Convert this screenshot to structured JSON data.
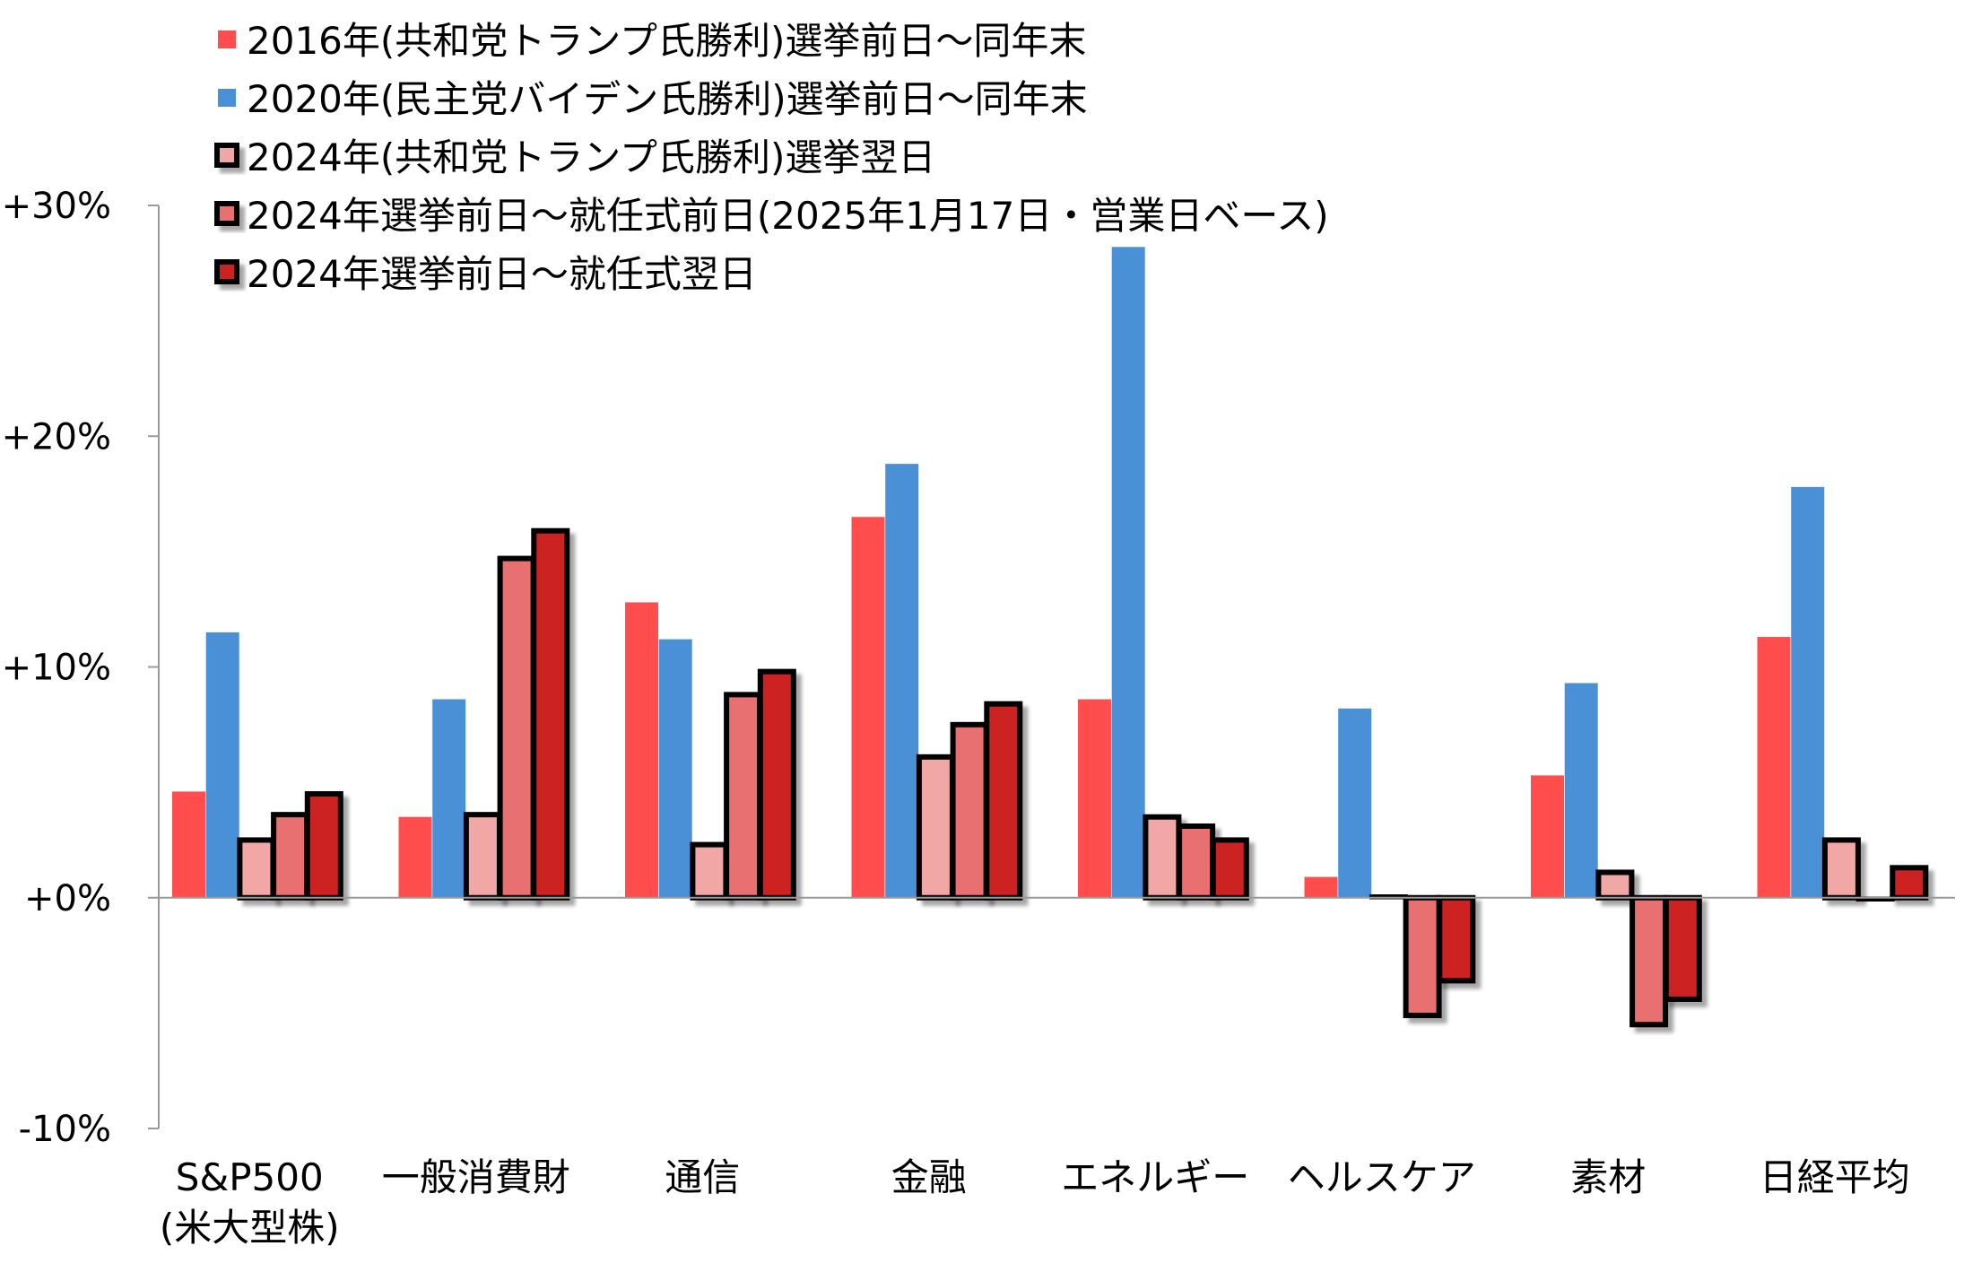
{
  "chart_data": {
    "type": "bar",
    "title": "",
    "xlabel": "",
    "ylabel": "",
    "ylim": [
      -10,
      30
    ],
    "yticks": [
      {
        "value": 30,
        "label": "+30%",
        "color": "#000000"
      },
      {
        "value": 20,
        "label": "+20%",
        "color": "#000000"
      },
      {
        "value": 10,
        "label": "+10%",
        "color": "#000000"
      },
      {
        "value": 0,
        "label": "+0%",
        "color": "#000000"
      },
      {
        "value": -10,
        "label": "-10%",
        "color": "#ff0000"
      }
    ],
    "legend_position": "top-left",
    "grid": false,
    "categories": [
      [
        "S&P500",
        "(米大型株)"
      ],
      [
        "一般消費財"
      ],
      [
        "通信"
      ],
      [
        "金融"
      ],
      [
        "エネルギー"
      ],
      [
        "ヘルスケア"
      ],
      [
        "素材"
      ],
      [
        "日経平均"
      ]
    ],
    "series": [
      {
        "name": "2016年(共和党トランプ氏勝利)選挙前日～同年末",
        "color": "#ff4d4d",
        "outlined": false,
        "values": [
          4.6,
          3.5,
          12.8,
          16.5,
          8.6,
          0.9,
          5.3,
          11.3
        ]
      },
      {
        "name": "2020年(民主党バイデン氏勝利)選挙前日～同年末",
        "color": "#4a90d6",
        "outlined": false,
        "values": [
          11.5,
          8.6,
          11.2,
          18.8,
          28.2,
          8.2,
          9.3,
          17.8
        ]
      },
      {
        "name": "2024年(共和党トランプ氏勝利)選挙翌日",
        "color": "#f2a7a7",
        "outlined": true,
        "values": [
          2.5,
          3.6,
          2.3,
          6.1,
          3.5,
          0.1,
          1.1,
          2.5
        ]
      },
      {
        "name": "2024年選挙前日～就任式前日(2025年1月17日・営業日ベース)",
        "color": "#e87070",
        "outlined": true,
        "values": [
          3.6,
          14.7,
          8.8,
          7.5,
          3.1,
          -5.1,
          -5.5,
          -0.1
        ]
      },
      {
        "name": "2024年選挙前日～就任式翌日",
        "color": "#cc2222",
        "outlined": true,
        "values": [
          4.5,
          15.9,
          9.8,
          8.4,
          2.5,
          -3.6,
          -4.4,
          1.3
        ]
      }
    ]
  }
}
